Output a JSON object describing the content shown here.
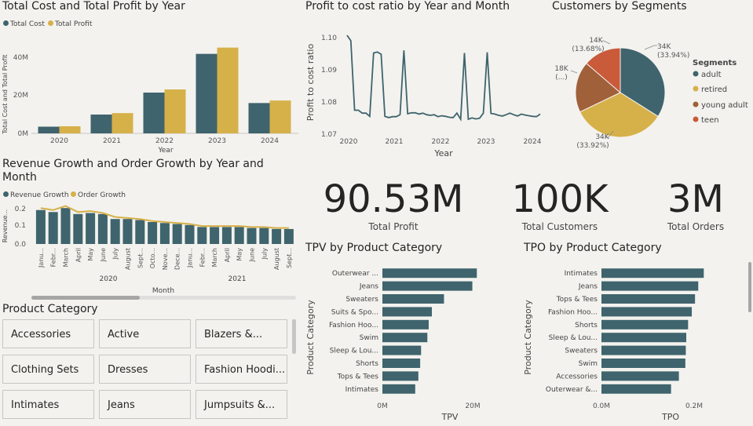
{
  "colors": {
    "cost": "#3f646d",
    "profit": "#d6b14a",
    "adult": "#3f646d",
    "retired": "#d6b14a",
    "young_adult": "#a0603a",
    "teen": "#c95a3a",
    "bar": "#3f646d",
    "line": "#3f646d",
    "bg": "#f3f2ee"
  },
  "cost_profit": {
    "title": "Total Cost and Total Profit by Year",
    "legend": [
      "Total Cost",
      "Total Profit"
    ],
    "ylabel": "Total Cost and Total Profit",
    "xlabel": "Year",
    "yticks": [
      "0M",
      "20M",
      "40M"
    ]
  },
  "ratio": {
    "title": "Profit to cost ratio by Year and Month",
    "ylabel": "Profit to cost ratio",
    "xlabel": "Year",
    "yticks": [
      "1.07",
      "1.08",
      "1.09",
      "1.10"
    ],
    "xticks": [
      "2020",
      "2021",
      "2022",
      "2023",
      "2024"
    ]
  },
  "segments": {
    "title": "Customers by Segments",
    "legend_title": "Segments",
    "labels": [
      "adult",
      "retired",
      "young adult",
      "teen"
    ],
    "slice_labels": {
      "adult": [
        "34K",
        "(33.94%)"
      ],
      "retired": [
        "34K",
        "(33.92%)"
      ],
      "young_adult": [
        "18K",
        "(...)"
      ],
      "teen": [
        "14K",
        "(13.68%)"
      ]
    }
  },
  "growth": {
    "title_line1": "Revenue Growth and Order Growth by Year and",
    "title_line2": "Month",
    "legend": [
      "Revenue Growth",
      "Order Growth"
    ],
    "ylabel": "Revenue...",
    "xlabel": "Month",
    "yticks": [
      "0.0",
      "0.1",
      "0.2"
    ],
    "year_labels": [
      "2020",
      "2021"
    ]
  },
  "kpis": {
    "profit_value": "90.53M",
    "profit_label": "Total Profit",
    "customers_value": "100K",
    "customers_label": "Total Customers",
    "orders_value": "3M",
    "orders_label": "Total Orders"
  },
  "tpv": {
    "title": "TPV by Product Category",
    "ylabel": "Product Category",
    "xlabel": "TPV",
    "xticks": [
      "0M",
      "20M"
    ]
  },
  "tpo": {
    "title": "TPO by Product Category",
    "ylabel": "Product Category",
    "xlabel": "TPO",
    "xticks": [
      "0.0M",
      "0.2M"
    ]
  },
  "product_filter": {
    "title": "Product Category",
    "tiles": [
      "Accessories",
      "Active",
      "Blazers &...",
      "Clothing Sets",
      "Dresses",
      "Fashion Hoodi...",
      "Intimates",
      "Jeans",
      "Jumpsuits &..."
    ]
  },
  "chart_data": [
    {
      "type": "bar",
      "title": "Total Cost and Total Profit by Year",
      "categories": [
        "2020",
        "2021",
        "2022",
        "2023",
        "2024"
      ],
      "series": [
        {
          "name": "Total Cost",
          "values": [
            3.2,
            9.0,
            19.5,
            38.0,
            14.5
          ]
        },
        {
          "name": "Total Profit",
          "values": [
            3.4,
            9.7,
            21.0,
            41.0,
            15.7
          ]
        }
      ],
      "ylim": [
        0,
        45
      ],
      "xlabel": "Year",
      "ylabel": "Total Cost and Total Profit",
      "legend": "top-left"
    },
    {
      "type": "line",
      "title": "Profit to cost ratio by Year and Month",
      "x": [
        "2020-01",
        "2020-02",
        "2020-03",
        "2020-04",
        "2020-05",
        "2020-06",
        "2020-07",
        "2020-08",
        "2020-09",
        "2020-10",
        "2020-11",
        "2020-12",
        "2021-01",
        "2021-02",
        "2021-03",
        "2021-04",
        "2021-05",
        "2021-06",
        "2021-07",
        "2021-08",
        "2021-09",
        "2021-10",
        "2021-11",
        "2021-12",
        "2022-01",
        "2022-02",
        "2022-03",
        "2022-04",
        "2022-05",
        "2022-06",
        "2022-07",
        "2022-08",
        "2022-09",
        "2022-10",
        "2022-11",
        "2022-12",
        "2023-01",
        "2023-02",
        "2023-03",
        "2023-04",
        "2023-05",
        "2023-06",
        "2023-07",
        "2023-08",
        "2023-09",
        "2023-10",
        "2023-11",
        "2023-12",
        "2024-01",
        "2024-02",
        "2024-03",
        "2024-04"
      ],
      "series": [
        {
          "name": "Profit to cost ratio",
          "values": [
            1.1005,
            1.0988,
            1.0772,
            1.0772,
            1.0763,
            1.0763,
            1.0753,
            1.095,
            1.0953,
            1.0946,
            1.0753,
            1.0749,
            1.0752,
            1.0752,
            1.0758,
            1.0958,
            1.0761,
            1.0764,
            1.0764,
            1.076,
            1.0763,
            1.0758,
            1.0756,
            1.0758,
            1.0752,
            1.0755,
            1.0753,
            1.075,
            1.0749,
            1.0763,
            1.0744,
            1.095,
            1.0744,
            1.0748,
            1.0745,
            1.0747,
            1.0763,
            1.0952,
            1.0762,
            1.076,
            1.0756,
            1.0754,
            1.0758,
            1.0763,
            1.0758,
            1.0754,
            1.076,
            1.0757,
            1.0755,
            1.0753,
            1.0752,
            1.076
          ]
        }
      ],
      "ylim": [
        1.07,
        1.1
      ],
      "xlabel": "Year",
      "ylabel": "Profit to cost ratio"
    },
    {
      "type": "pie",
      "title": "Customers by Segments",
      "categories": [
        "adult",
        "retired",
        "young adult",
        "teen"
      ],
      "values": [
        33.94,
        33.92,
        18.46,
        13.68
      ],
      "legend": "right"
    },
    {
      "type": "bar",
      "title": "Revenue Growth and Order Growth by Year and Month",
      "categories": [
        "Janu...",
        "Febr...",
        "March",
        "April",
        "May",
        "June",
        "July",
        "August",
        "Sept...",
        "Octo...",
        "Nove...",
        "Dece...",
        "Janu...",
        "Febr...",
        "March",
        "April",
        "May",
        "June",
        "July",
        "August",
        "Sept..."
      ],
      "series": [
        {
          "name": "Revenue Growth",
          "values": [
            0.17,
            0.16,
            0.18,
            0.15,
            0.155,
            0.15,
            0.125,
            0.125,
            0.12,
            0.11,
            0.105,
            0.1,
            0.095,
            0.085,
            0.085,
            0.085,
            0.085,
            0.08,
            0.08,
            0.075,
            0.075
          ]
        },
        {
          "name": "Order Growth",
          "values": [
            0.18,
            0.17,
            0.19,
            0.16,
            0.165,
            0.155,
            0.135,
            0.13,
            0.125,
            0.115,
            0.11,
            0.105,
            0.1,
            0.09,
            0.09,
            0.09,
            0.09,
            0.085,
            0.085,
            0.08,
            0.08
          ]
        }
      ],
      "ylim": [
        0,
        0.22
      ],
      "xlabel": "Month",
      "ylabel": "Revenue...",
      "legend": "top-left"
    },
    {
      "type": "bar",
      "title": "TPV by Product Category",
      "categories": [
        "Outerwear ...",
        "Jeans",
        "Sweaters",
        "Suits & Spo...",
        "Fashion Hoo...",
        "Swim",
        "Sleep & Lou...",
        "Shorts",
        "Tops & Tees",
        "Intimates"
      ],
      "values": [
        21.0,
        20.0,
        13.7,
        11.0,
        10.3,
        10.0,
        8.6,
        8.4,
        8.0,
        7.3
      ],
      "xlim": [
        0,
        22
      ],
      "xlabel": "TPV",
      "ylabel": "Product Category"
    },
    {
      "type": "bar",
      "title": "TPO by Product Category",
      "categories": [
        "Intimates",
        "Jeans",
        "Tops & Tees",
        "Fashion Hoo...",
        "Shorts",
        "Sleep & Lou...",
        "Sweaters",
        "Swim",
        "Accessories",
        "Outerwear &..."
      ],
      "values": [
        0.222,
        0.21,
        0.203,
        0.196,
        0.188,
        0.184,
        0.183,
        0.182,
        0.168,
        0.151
      ],
      "xlim": [
        0,
        0.23
      ],
      "xlabel": "TPO",
      "ylabel": "Product Category"
    }
  ]
}
